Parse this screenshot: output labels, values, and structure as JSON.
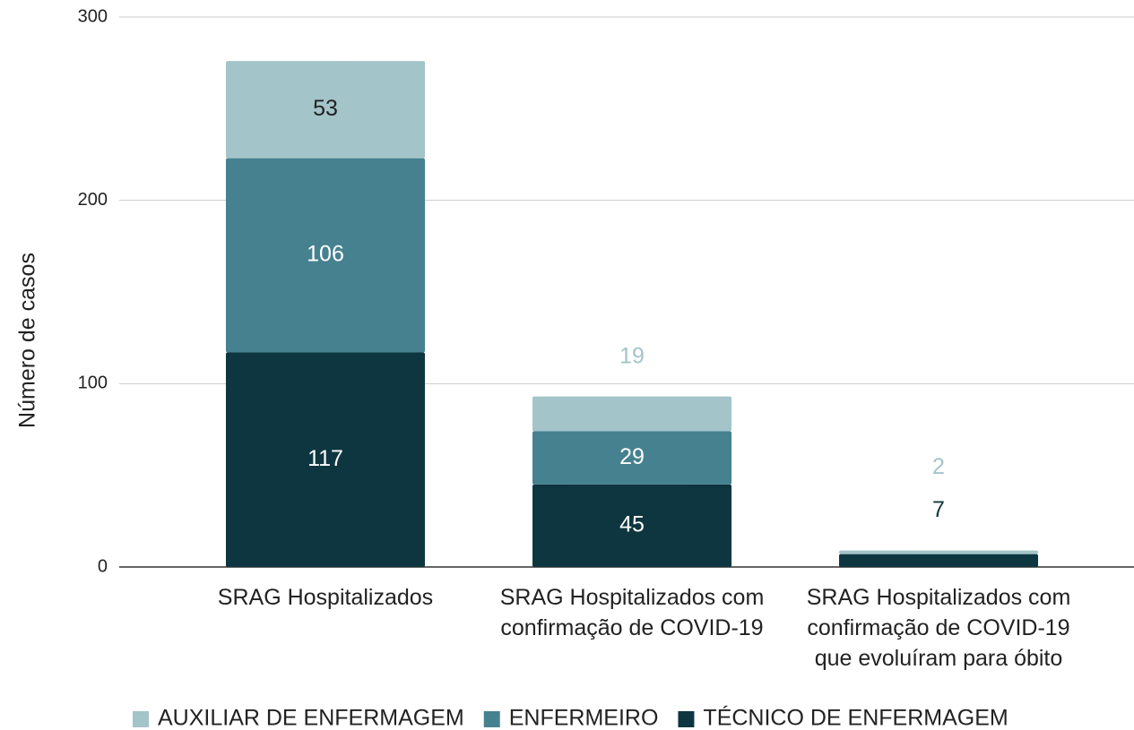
{
  "chart_data": {
    "type": "stacked_bar",
    "y_label": "Número de casos",
    "categories": [
      "SRAG Hospitalizados",
      "SRAG Hospitalizados com\nconfirmação de COVID-19",
      "SRAG Hospitalizados com\nconfirmação de COVID-19\nque evoluíram para óbito"
    ],
    "series": [
      {
        "name": "TÉCNICO DE ENFERMAGEM",
        "color": "#0e3640",
        "values": [
          117,
          45,
          7
        ]
      },
      {
        "name": "ENFERMEIRO",
        "color": "#468190",
        "values": [
          106,
          29,
          0
        ]
      },
      {
        "name": "AUXILIAR DE ENFERMAGEM",
        "color": "#a3c4c9",
        "values": [
          53,
          19,
          2
        ]
      }
    ],
    "legend_order": [
      2,
      1,
      0
    ],
    "ylim": [
      0,
      300
    ],
    "yticks": [
      0,
      100,
      200,
      300
    ],
    "grid": true,
    "legend": "bottom"
  }
}
